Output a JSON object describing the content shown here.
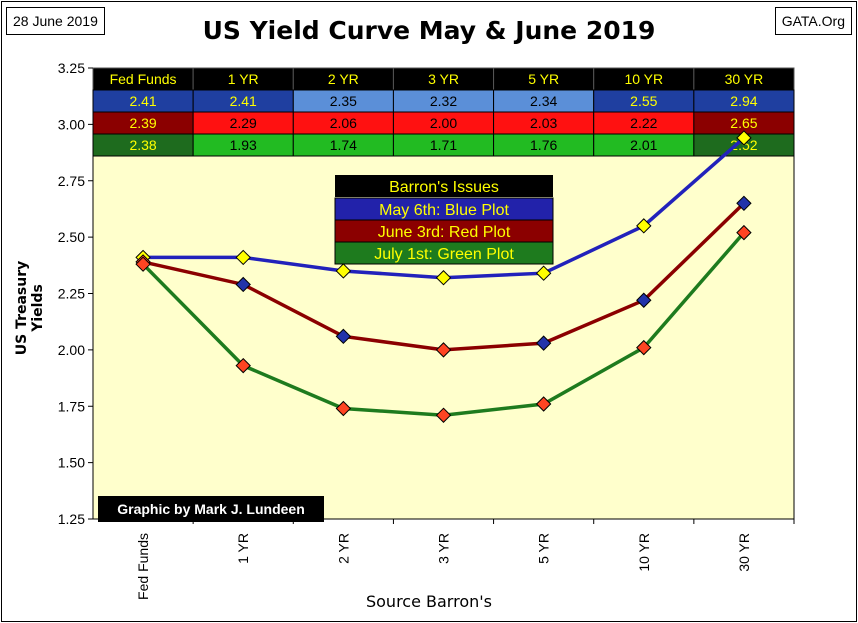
{
  "header": {
    "date": "28 June 2019",
    "site": "GATA.Org",
    "title": "US Yield Curve May & June 2019"
  },
  "credit": "Graphic by Mark J. Lundeen",
  "colors": {
    "plot_bg": "#FFFFCC",
    "blue": "#2222BB",
    "red": "#8B0000",
    "green": "#1E7B1E",
    "marker_blue": "#2233AA",
    "marker_red": "#FF4422",
    "marker_yellow": "#FFFF00"
  },
  "table": {
    "header_row": [
      "Fed Funds",
      "1 YR",
      "2 YR",
      "3 YR",
      "5 YR",
      "10 YR",
      "30 YR"
    ],
    "rows": [
      {
        "values": [
          "2.41",
          "2.41",
          "2.35",
          "2.32",
          "2.34",
          "2.55",
          "2.94"
        ],
        "fills": [
          "#1F3FA0",
          "#1F3FA0",
          "#5B8FD8",
          "#5B8FD8",
          "#5B8FD8",
          "#1F3FA0",
          "#1F3FA0"
        ],
        "text_colors": [
          "#FFFF00",
          "#FFFF00",
          "#000000",
          "#000000",
          "#000000",
          "#FFFF00",
          "#FFFF00"
        ]
      },
      {
        "values": [
          "2.39",
          "2.29",
          "2.06",
          "2.00",
          "2.03",
          "2.22",
          "2.65"
        ],
        "fills": [
          "#8B0000",
          "#FF1111",
          "#FF1111",
          "#FF1111",
          "#FF1111",
          "#FF1111",
          "#8B0000"
        ],
        "text_colors": [
          "#FFFF00",
          "#000000",
          "#000000",
          "#000000",
          "#000000",
          "#000000",
          "#FFFF00"
        ]
      },
      {
        "values": [
          "2.38",
          "1.93",
          "1.74",
          "1.71",
          "1.76",
          "2.01",
          "2.52"
        ],
        "fills": [
          "#1E6B1E",
          "#22BB22",
          "#22BB22",
          "#22BB22",
          "#22BB22",
          "#22BB22",
          "#1E6B1E"
        ],
        "text_colors": [
          "#FFFF00",
          "#000000",
          "#000000",
          "#000000",
          "#000000",
          "#000000",
          "#FFFF00"
        ]
      }
    ]
  },
  "legend": {
    "title": "Barron's Issues",
    "items": [
      {
        "label": "May 6th:  Blue Plot",
        "fill": "#2222AA"
      },
      {
        "label": "June 3rd: Red Plot",
        "fill": "#8B0000"
      },
      {
        "label": "July 1st: Green Plot",
        "fill": "#1E7B1E"
      }
    ]
  },
  "chart_data": {
    "type": "line",
    "categories": [
      "Fed Funds",
      "1 YR",
      "2 YR",
      "3 YR",
      "5 YR",
      "10 YR",
      "30 YR"
    ],
    "ylabel": "US Treasury Yields",
    "xlabel": "Source Barron's",
    "ylim": [
      1.25,
      3.25
    ],
    "yticks": [
      "1.25",
      "1.50",
      "1.75",
      "2.00",
      "2.25",
      "2.50",
      "2.75",
      "3.00",
      "3.25"
    ],
    "grid": false,
    "series": [
      {
        "name": "May 6th",
        "values": [
          2.41,
          2.41,
          2.35,
          2.32,
          2.34,
          2.55,
          2.94
        ],
        "line_color": "#2222BB",
        "marker_fills": [
          "#FFFF00",
          "#FFFF00",
          "#FFFF00",
          "#FFFF00",
          "#FFFF00",
          "#FFFF00",
          "#FFFF00"
        ]
      },
      {
        "name": "June 3rd",
        "values": [
          2.39,
          2.29,
          2.06,
          2.0,
          2.03,
          2.22,
          2.65
        ],
        "line_color": "#8B0000",
        "marker_fills": [
          "#FF4422",
          "#2233AA",
          "#2233AA",
          "#FF4422",
          "#2233AA",
          "#2233AA",
          "#2233AA"
        ]
      },
      {
        "name": "July 1st",
        "values": [
          2.38,
          1.93,
          1.74,
          1.71,
          1.76,
          2.01,
          2.52
        ],
        "line_color": "#1E7B1E",
        "marker_fills": [
          "#FF4422",
          "#FF4422",
          "#FF4422",
          "#FF4422",
          "#FF4422",
          "#FF4422",
          "#FF4422"
        ]
      }
    ]
  }
}
